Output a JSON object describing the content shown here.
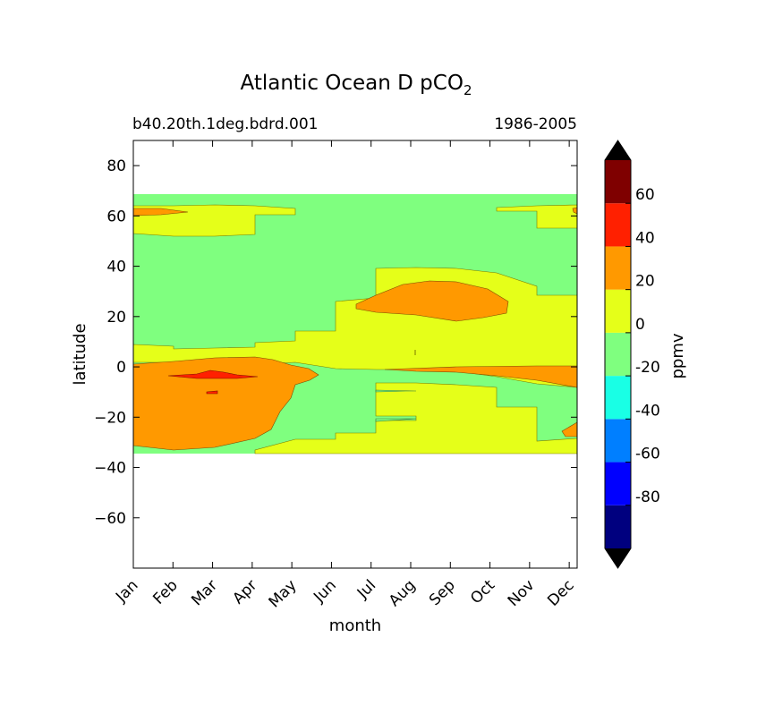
{
  "chart_data": {
    "type": "filled-contour",
    "title_main": "Atlantic Ocean D pCO",
    "title_sub": "2",
    "subtitle_left": "b40.20th.1deg.bdrd.001",
    "subtitle_right": "1986-2005",
    "xlabel": "month",
    "ylabel": "latitude",
    "colorbar_label": "ppmv",
    "x_categories": [
      "Jan",
      "Feb",
      "Mar",
      "Apr",
      "May",
      "Jun",
      "Jul",
      "Aug",
      "Sep",
      "Oct",
      "Nov",
      "Dec"
    ],
    "x_range": [
      1,
      12.2
    ],
    "ylim": [
      -80,
      90
    ],
    "yticks": [
      80,
      60,
      40,
      20,
      0,
      -20,
      -40,
      -60
    ],
    "ytick_labels": [
      "80",
      "60",
      "40",
      "20",
      "0",
      "−20",
      "−40",
      "−60"
    ],
    "data_lat_range": [
      -34,
      69
    ],
    "colorbar": {
      "levels": [
        -100,
        -80,
        -60,
        -40,
        -20,
        0,
        20,
        40,
        60,
        80
      ],
      "tick_values": [
        60,
        40,
        20,
        0,
        -20,
        -40,
        -60,
        -80
      ],
      "tick_labels": [
        "60",
        "40",
        "20",
        "0",
        "-20",
        "-40",
        "-60",
        "-80"
      ],
      "colors": [
        "#00007f",
        "#0000ff",
        "#007fff",
        "#19ffe5",
        "#7fff7f",
        "#e5ff19",
        "#ff9900",
        "#ff2000",
        "#7f0000"
      ],
      "extend": "both",
      "under_color": "#000000",
      "over_color": "#000000"
    },
    "regions": [
      {
        "level": "-20 to 0",
        "color": "#7fff7f",
        "description_lat": [
          -34,
          69
        ]
      },
      {
        "level": "0 to 20",
        "color": "#e5ff19",
        "lat": [
          -34,
          64
        ]
      },
      {
        "level": "20 to 40",
        "color": "#ff9900",
        "months": [
          "Jan",
          "May"
        ],
        "lat": [
          -32,
          4
        ]
      },
      {
        "level": "20 to 40",
        "color": "#ff9900",
        "months": [
          "Jul",
          "Oct"
        ],
        "lat": [
          19,
          34
        ]
      },
      {
        "level": "40 to 60",
        "color": "#ff2000",
        "months": [
          "Feb",
          "Apr"
        ],
        "lat": [
          -5,
          -2
        ]
      }
    ]
  }
}
